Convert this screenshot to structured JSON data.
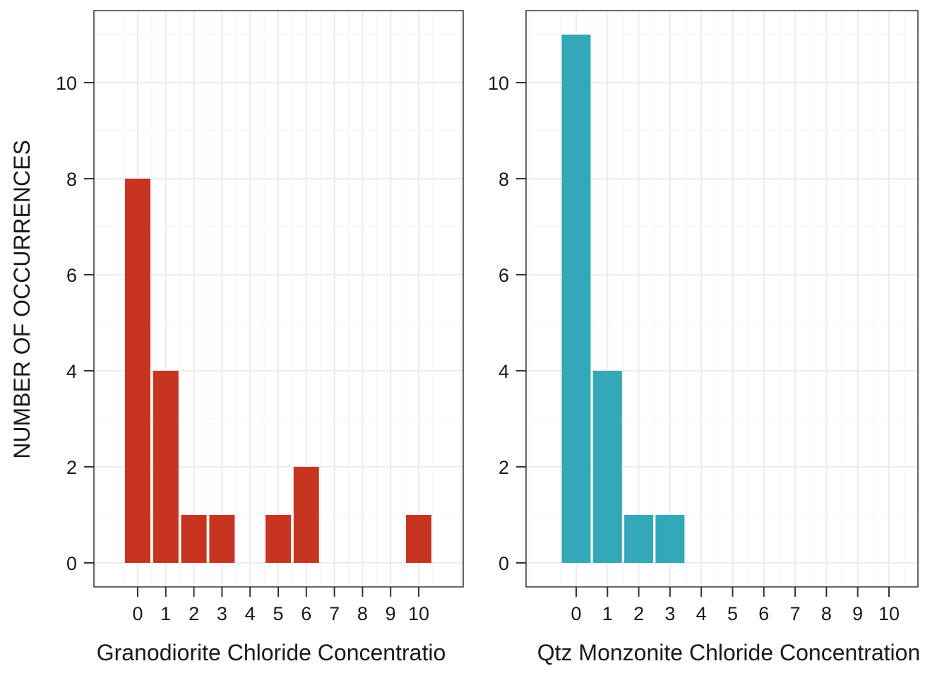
{
  "ylabel": "NUMBER OF OCCURRENCES",
  "chart_data": [
    {
      "type": "bar",
      "xlabel": "Granodiorite Chloride Concentratio",
      "ylabel": "NUMBER OF OCCURRENCES",
      "categories": [
        "0",
        "1",
        "2",
        "3",
        "4",
        "5",
        "6",
        "7",
        "8",
        "9",
        "10"
      ],
      "values": [
        8,
        4,
        1,
        1,
        0,
        1,
        2,
        0,
        0,
        0,
        1
      ],
      "yticks": [
        0,
        2,
        4,
        6,
        8,
        10
      ],
      "ylim": [
        -0.5,
        11.5
      ],
      "color": "#C73522",
      "grid": true
    },
    {
      "type": "bar",
      "xlabel": "Qtz Monzonite Chloride Concentration",
      "ylabel": "NUMBER OF OCCURRENCES",
      "categories": [
        "0",
        "1",
        "2",
        "3",
        "4",
        "5",
        "6",
        "7",
        "8",
        "9",
        "10"
      ],
      "values": [
        11,
        4,
        1,
        1,
        0,
        0,
        0,
        0,
        0,
        0,
        0
      ],
      "yticks": [
        0,
        2,
        4,
        6,
        8,
        10
      ],
      "ylim": [
        -0.5,
        11.5
      ],
      "color": "#33A8B8",
      "grid": true
    }
  ]
}
